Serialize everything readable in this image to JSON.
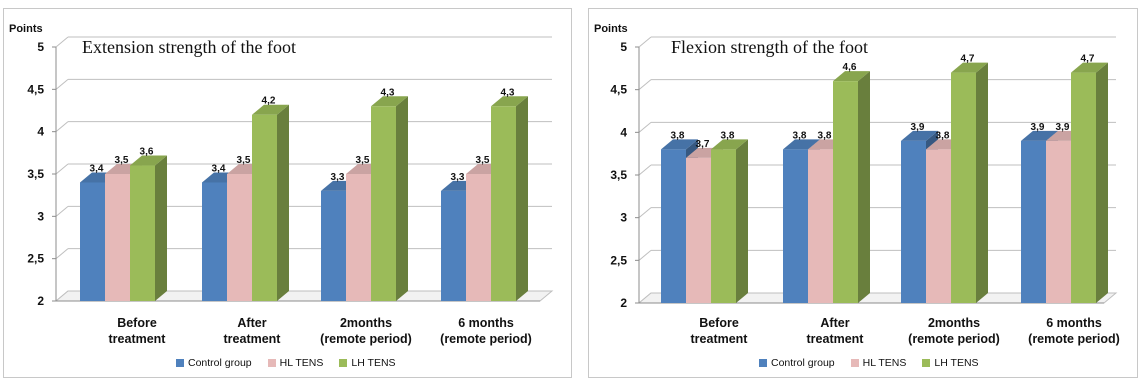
{
  "chart_data": [
    {
      "type": "bar",
      "title": "Extension strength of the foot",
      "ylabel": "Points",
      "ylim": [
        2,
        5
      ],
      "yticks": [
        "2",
        "2,5",
        "3",
        "3,5",
        "4",
        "4,5",
        "5"
      ],
      "categories": [
        "Before\ntreatment",
        "After\ntreatment",
        "2months\n(remote period)",
        "6 months\n(remote period)"
      ],
      "series": [
        {
          "name": "Control group",
          "color": "#4f81bd",
          "values": [
            3.4,
            3.4,
            3.3,
            3.3
          ],
          "labels": [
            "3,4",
            "3,4",
            "3,3",
            "3,3"
          ]
        },
        {
          "name": "HL TENS",
          "color": "#e6b9b8",
          "values": [
            3.5,
            3.5,
            3.5,
            3.5
          ],
          "labels": [
            "3,5",
            "3,5",
            "3,5",
            "3,5"
          ]
        },
        {
          "name": "LH TENS",
          "color": "#9bbb59",
          "values": [
            3.6,
            4.2,
            4.3,
            4.3
          ],
          "labels": [
            "3,6",
            "4,2",
            "4,3",
            "4,3"
          ]
        }
      ],
      "legend_position": "bottom",
      "grid": true
    },
    {
      "type": "bar",
      "title": "Flexion strength of the foot",
      "ylabel": "Points",
      "ylim": [
        2,
        5
      ],
      "yticks": [
        "2",
        "2,5",
        "3",
        "3,5",
        "4",
        "4,5",
        "5"
      ],
      "categories": [
        "Before\ntreatment",
        "After\ntreatment",
        "2months\n(remote period)",
        "6 months\n(remote period)"
      ],
      "series": [
        {
          "name": "Control group",
          "color": "#4f81bd",
          "values": [
            3.8,
            3.8,
            3.9,
            3.9
          ],
          "labels": [
            "3,8",
            "3,8",
            "3,9",
            "3,9"
          ]
        },
        {
          "name": "HL TENS",
          "color": "#e6b9b8",
          "values": [
            3.7,
            3.8,
            3.8,
            3.9
          ],
          "labels": [
            "3,7",
            "3,8",
            "3,8",
            "3,9"
          ]
        },
        {
          "name": "LH TENS",
          "color": "#9bbb59",
          "values": [
            3.8,
            4.6,
            4.7,
            4.7
          ],
          "labels": [
            "3,8",
            "4,6",
            "4,7",
            "4,7"
          ]
        }
      ],
      "legend_position": "bottom",
      "grid": true
    }
  ]
}
